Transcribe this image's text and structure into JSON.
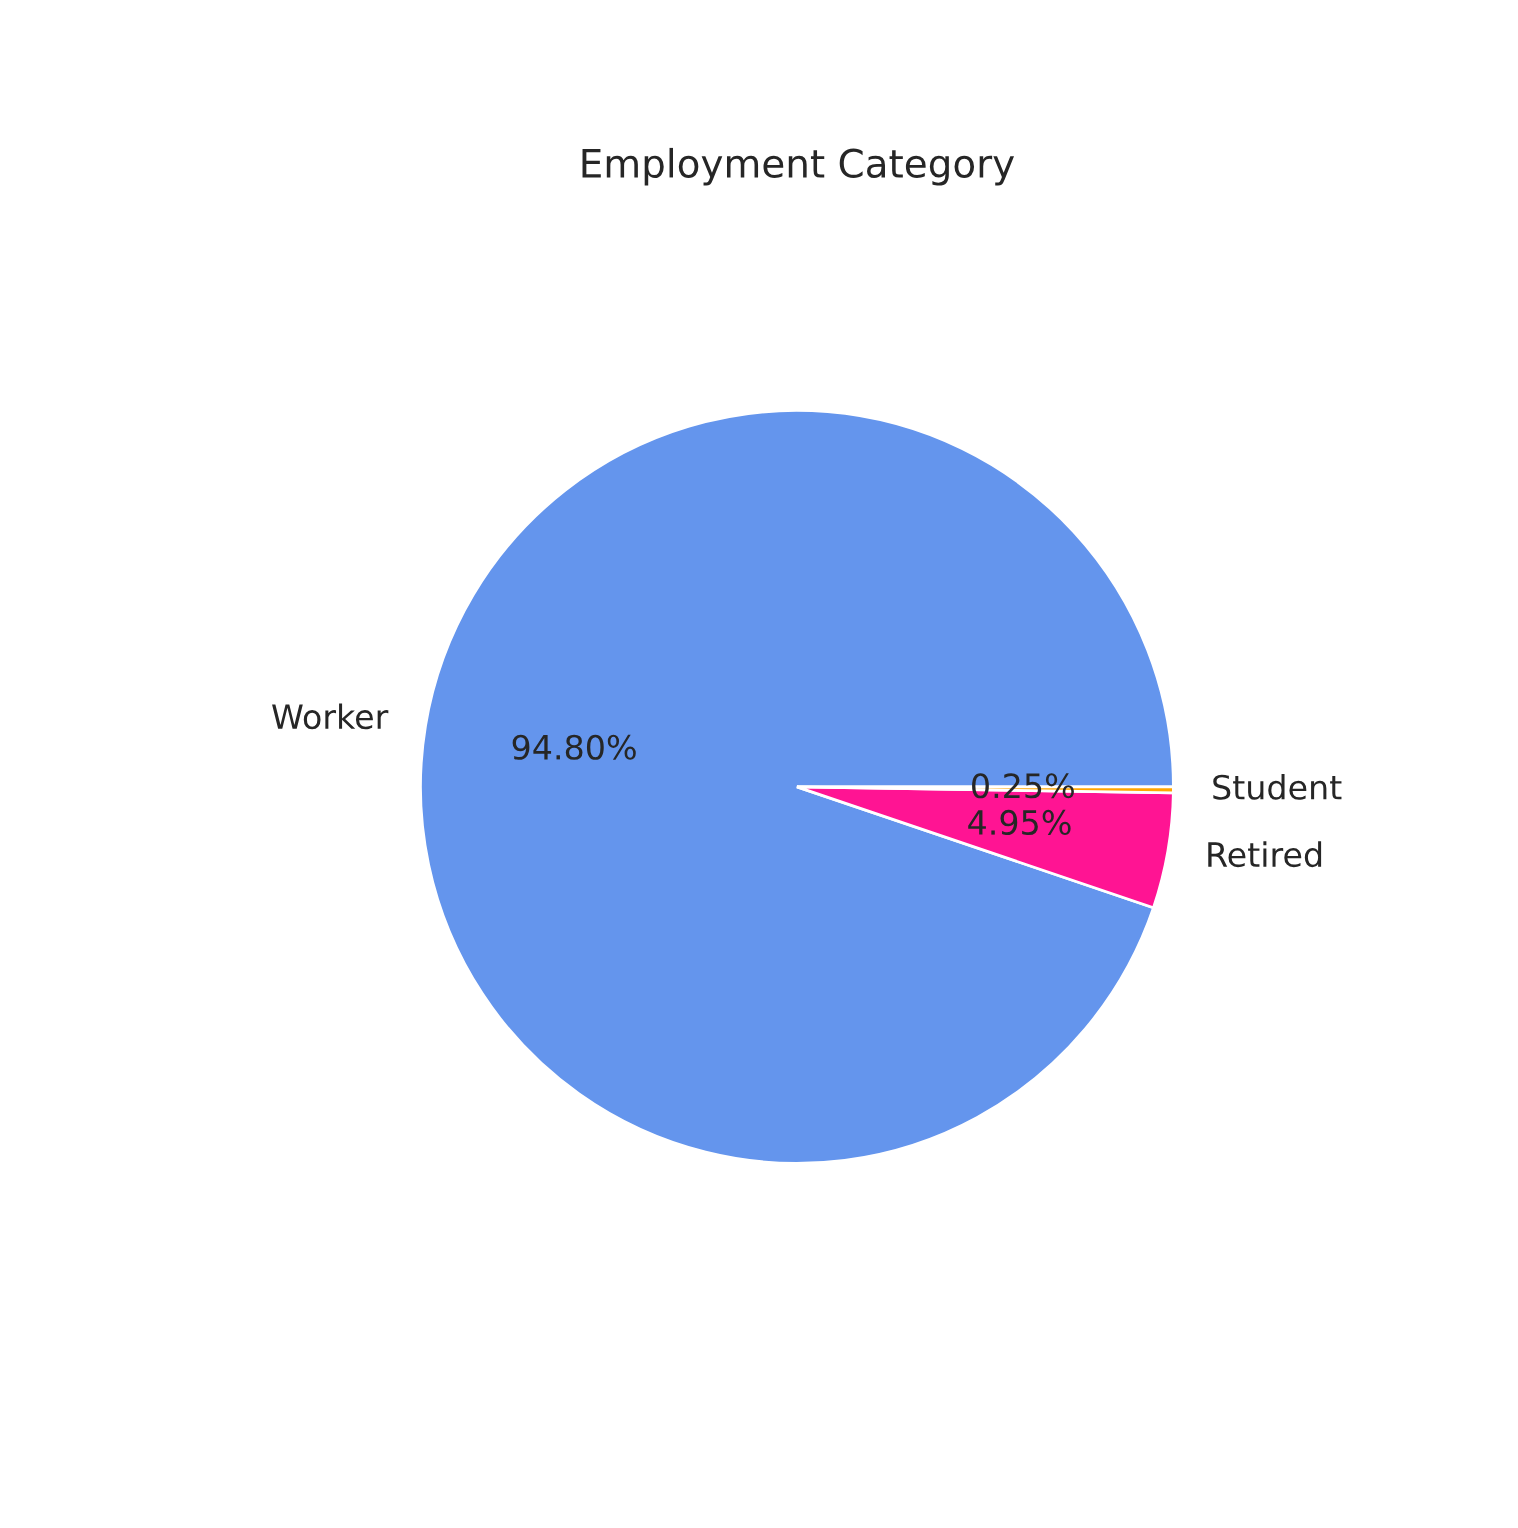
{
  "chart_data": {
    "type": "pie",
    "title": "Employment Category",
    "categories": [
      "Worker",
      "Retired",
      "Student"
    ],
    "values": [
      94.8,
      4.95,
      0.25
    ],
    "value_labels": [
      "94.80%",
      "4.95%",
      "0.25%"
    ],
    "colors": [
      "#6495ed",
      "#ff1493",
      "#ffa500"
    ]
  }
}
